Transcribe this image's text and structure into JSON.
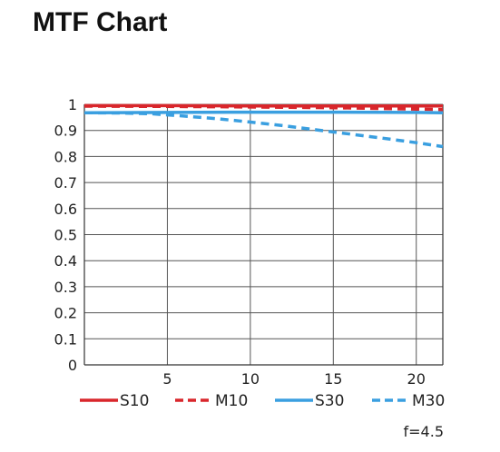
{
  "page": {
    "title": "MTF Chart"
  },
  "chart_data": {
    "type": "line",
    "title": "MTF Chart",
    "xlabel": "",
    "ylabel": "",
    "xlim": [
      0,
      21.6
    ],
    "ylim": [
      0,
      1
    ],
    "x_ticks": [
      5,
      10,
      15,
      20
    ],
    "y_ticks": [
      0,
      0.1,
      0.2,
      0.3,
      0.4,
      0.5,
      0.6,
      0.7,
      0.8,
      0.9,
      1
    ],
    "y_tick_labels": [
      "0",
      "0.1",
      "0.2",
      "0.3",
      "0.4",
      "0.5",
      "0.6",
      "0.7",
      "0.8",
      "0.9",
      "1"
    ],
    "grid": true,
    "legend_position": "bottom",
    "series": [
      {
        "name": "S10",
        "color": "#d9262b",
        "style": "solid",
        "x": [
          0,
          5,
          10,
          15,
          20,
          21.6
        ],
        "y": [
          0.995,
          0.995,
          0.994,
          0.994,
          0.994,
          0.994
        ]
      },
      {
        "name": "M10",
        "color": "#d9262b",
        "style": "dashed",
        "x": [
          0,
          5,
          10,
          15,
          20,
          21.6
        ],
        "y": [
          0.993,
          0.992,
          0.99,
          0.987,
          0.982,
          0.98
        ]
      },
      {
        "name": "S30",
        "color": "#3a9fe0",
        "style": "solid",
        "x": [
          0,
          5,
          10,
          15,
          20,
          21.6
        ],
        "y": [
          0.968,
          0.969,
          0.97,
          0.97,
          0.969,
          0.968
        ]
      },
      {
        "name": "M30",
        "color": "#3a9fe0",
        "style": "dashed",
        "x": [
          0,
          2,
          4,
          6,
          8,
          10,
          12,
          14,
          16,
          18,
          20,
          21.6
        ],
        "y": [
          0.968,
          0.967,
          0.964,
          0.955,
          0.945,
          0.932,
          0.918,
          0.902,
          0.886,
          0.87,
          0.853,
          0.838
        ]
      }
    ],
    "annotation": "f=4.5"
  }
}
